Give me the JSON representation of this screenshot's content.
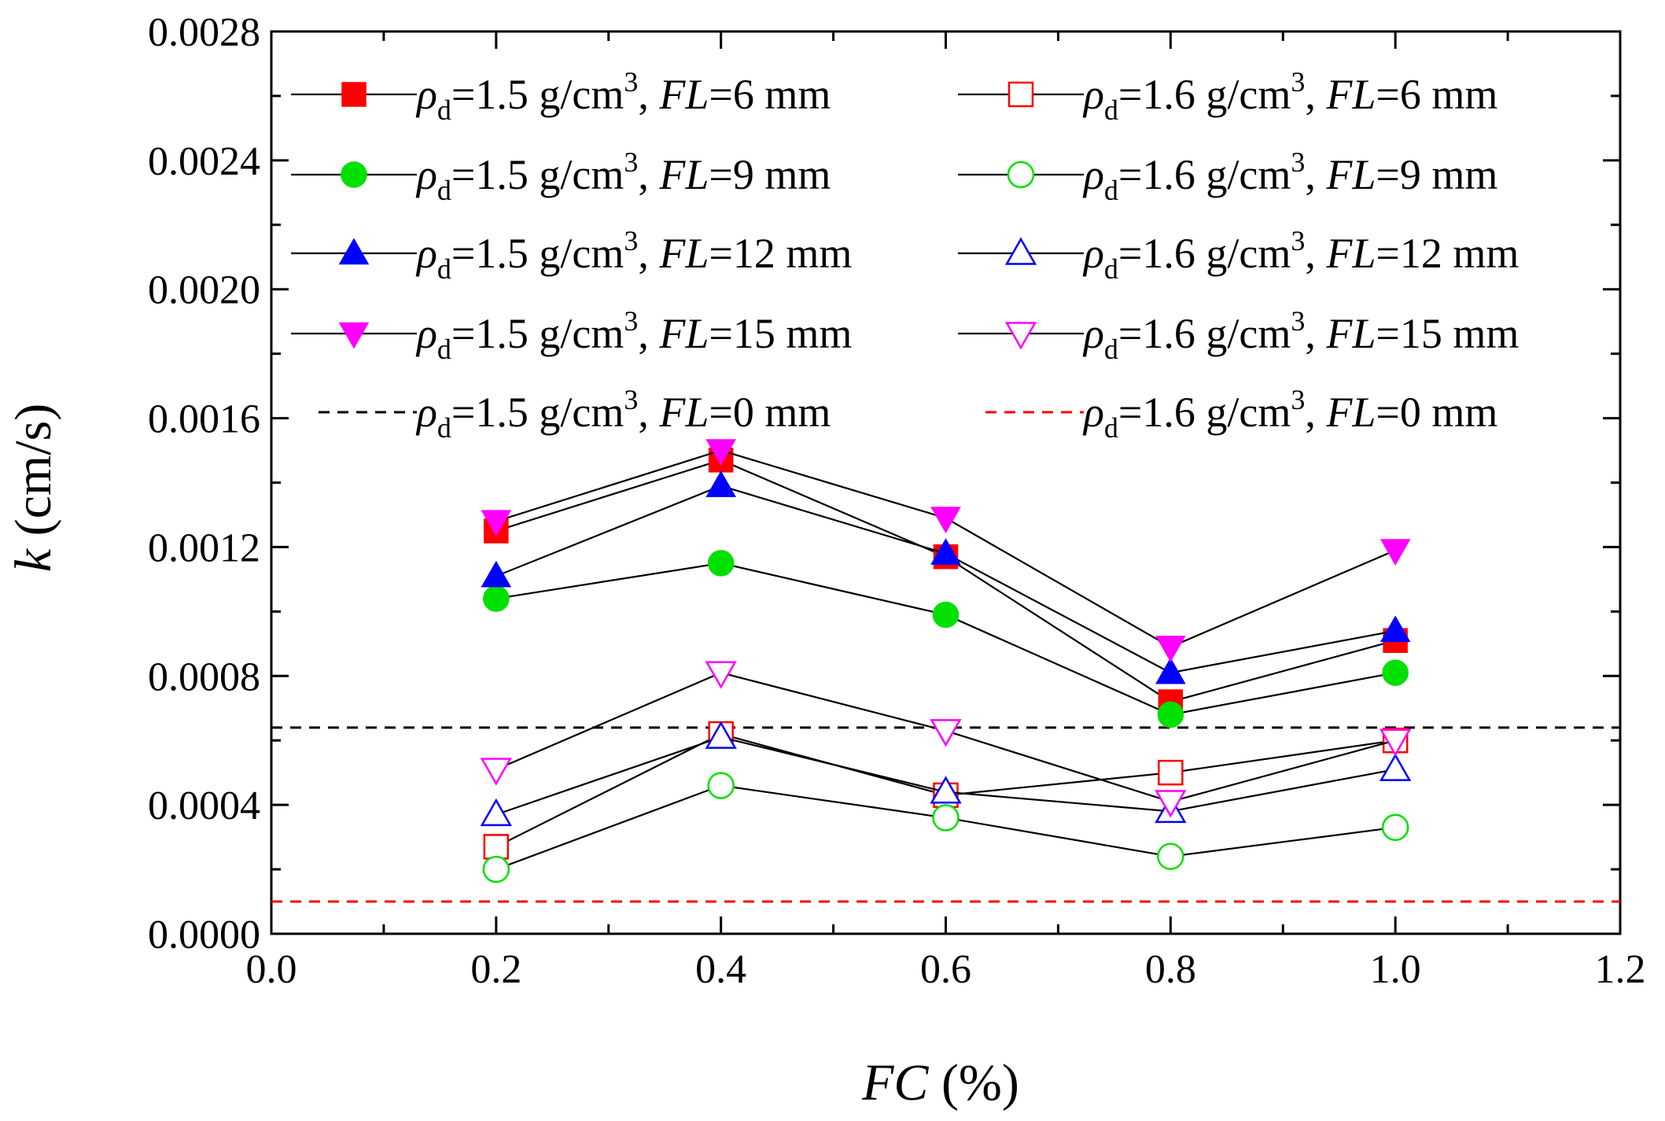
{
  "chart_data": {
    "type": "line",
    "title": "",
    "xlabel": {
      "var": "FC",
      "unit": " (%)"
    },
    "ylabel": {
      "var": "k",
      "unit": " (cm/s)"
    },
    "xlim": [
      0.0,
      1.2
    ],
    "ylim": [
      0.0,
      0.0028
    ],
    "x_ticks": [
      "0.0",
      "0.2",
      "0.4",
      "0.6",
      "0.8",
      "1.0",
      "1.2"
    ],
    "y_ticks": [
      "0.0000",
      "0.0004",
      "0.0008",
      "0.0012",
      "0.0016",
      "0.0020",
      "0.0024",
      "0.0028"
    ],
    "grid": false,
    "legend_position": "top",
    "x": [
      0.2,
      0.4,
      0.6,
      0.8,
      1.0
    ],
    "series": [
      {
        "name": "ρd=1.5 g/cm3, FL=6 mm",
        "rho": "ρ",
        "rho_sub": "d",
        "density": "=1.5 g/cm",
        "density_sup": "3",
        "sep": ", ",
        "fl": "FL",
        "fl_value": "=6 mm",
        "marker": "square",
        "fill": "#ff0000",
        "stroke": "#ff0000",
        "values": [
          0.00125,
          0.00147,
          0.00117,
          0.00072,
          0.00091
        ]
      },
      {
        "name": "ρd=1.5 g/cm3, FL=9 mm",
        "rho": "ρ",
        "rho_sub": "d",
        "density": "=1.5 g/cm",
        "density_sup": "3",
        "sep": ", ",
        "fl": "FL",
        "fl_value": "=9 mm",
        "marker": "circle",
        "fill": "#00e000",
        "stroke": "#00e000",
        "values": [
          0.00104,
          0.00115,
          0.00099,
          0.00068,
          0.00081
        ]
      },
      {
        "name": "ρd=1.5 g/cm3, FL=12 mm",
        "rho": "ρ",
        "rho_sub": "d",
        "density": "=1.5 g/cm",
        "density_sup": "3",
        "sep": ", ",
        "fl": "FL",
        "fl_value": "=12 mm",
        "marker": "triangle-up",
        "fill": "#0000ff",
        "stroke": "#0000ff",
        "values": [
          0.00111,
          0.00139,
          0.00118,
          0.00081,
          0.00094
        ]
      },
      {
        "name": "ρd=1.5 g/cm3, FL=15 mm",
        "rho": "ρ",
        "rho_sub": "d",
        "density": "=1.5 g/cm",
        "density_sup": "3",
        "sep": ", ",
        "fl": "FL",
        "fl_value": "=15 mm",
        "marker": "triangle-down",
        "fill": "#ff00ff",
        "stroke": "#ff00ff",
        "values": [
          0.00128,
          0.0015,
          0.00129,
          0.00089,
          0.00119
        ]
      },
      {
        "name": "ρd=1.5 g/cm3, FL=0 mm",
        "rho": "ρ",
        "rho_sub": "d",
        "density": "=1.5 g/cm",
        "density_sup": "3",
        "sep": ", ",
        "fl": "FL",
        "fl_value": "=0 mm",
        "marker": "dash-line",
        "fill": "none",
        "stroke": "#000000",
        "constant": 0.00064
      },
      {
        "name": "ρd=1.6 g/cm3, FL=6 mm",
        "rho": "ρ",
        "rho_sub": "d",
        "density": "=1.6 g/cm",
        "density_sup": "3",
        "sep": ", ",
        "fl": "FL",
        "fl_value": "=6 mm",
        "marker": "square-open",
        "fill": "none",
        "stroke": "#ff0000",
        "values": [
          0.00027,
          0.00062,
          0.00043,
          0.0005,
          0.0006
        ]
      },
      {
        "name": "ρd=1.6 g/cm3, FL=9 mm",
        "rho": "ρ",
        "rho_sub": "d",
        "density": "=1.6 g/cm",
        "density_sup": "3",
        "sep": ", ",
        "fl": "FL",
        "fl_value": "=9 mm",
        "marker": "circle-open",
        "fill": "none",
        "stroke": "#00e000",
        "values": [
          0.0002,
          0.00046,
          0.00036,
          0.00024,
          0.00033
        ]
      },
      {
        "name": "ρd=1.6 g/cm3, FL=12 mm",
        "rho": "ρ",
        "rho_sub": "d",
        "density": "=1.6 g/cm",
        "density_sup": "3",
        "sep": ", ",
        "fl": "FL",
        "fl_value": "=12 mm",
        "marker": "triangle-up-open",
        "fill": "none",
        "stroke": "#0000ff",
        "values": [
          0.00037,
          0.00061,
          0.00044,
          0.00038,
          0.00051
        ]
      },
      {
        "name": "ρd=1.6 g/cm3, FL=15 mm",
        "rho": "ρ",
        "rho_sub": "d",
        "density": "=1.6 g/cm",
        "density_sup": "3",
        "sep": ", ",
        "fl": "FL",
        "fl_value": "=15 mm",
        "marker": "triangle-down-open",
        "fill": "none",
        "stroke": "#ff00ff",
        "values": [
          0.00051,
          0.00081,
          0.00063,
          0.00041,
          0.0006
        ]
      },
      {
        "name": "ρd=1.6 g/cm3, FL=0 mm",
        "rho": "ρ",
        "rho_sub": "d",
        "density": "=1.6 g/cm",
        "density_sup": "3",
        "sep": ", ",
        "fl": "FL",
        "fl_value": "=0 mm",
        "marker": "dash-line",
        "fill": "none",
        "stroke": "#ff0000",
        "constant": 0.0001
      }
    ]
  }
}
